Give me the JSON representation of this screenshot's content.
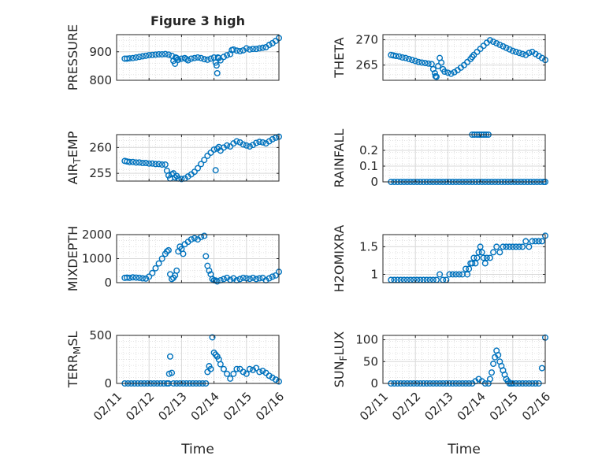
{
  "figure_title": "Figure 3 high",
  "colors": {
    "marker": "#0072bd",
    "axis": "#262626",
    "grid": "#d9d9d9"
  },
  "chart_data": [
    {
      "id": "pressure",
      "type": "scatter",
      "title": "Figure 3 high",
      "ylabel": "PRESSURE",
      "ylim": [
        800,
        960
      ],
      "yticks": [
        800,
        900
      ],
      "xlim": [
        0,
        5
      ],
      "xticks": [],
      "grid": true,
      "marker": "circle",
      "x": [
        0.25,
        0.32,
        0.4,
        0.5,
        0.6,
        0.7,
        0.8,
        0.9,
        1.0,
        1.1,
        1.2,
        1.3,
        1.4,
        1.5,
        1.6,
        1.7,
        1.75,
        1.8,
        1.82,
        1.85,
        1.88,
        1.9,
        2.0,
        2.1,
        2.15,
        2.2,
        2.3,
        2.4,
        2.5,
        2.6,
        2.7,
        2.8,
        2.9,
        3.0,
        3.05,
        3.08,
        3.1,
        3.12,
        3.15,
        3.2,
        3.3,
        3.4,
        3.5,
        3.55,
        3.6,
        3.7,
        3.8,
        3.9,
        4.0,
        4.1,
        4.2,
        4.3,
        4.4,
        4.5,
        4.6,
        4.7,
        4.8,
        4.9,
        5.0
      ],
      "y": [
        876,
        876,
        877,
        878,
        880,
        882,
        884,
        886,
        888,
        889,
        890,
        891,
        891,
        892,
        890,
        886,
        868,
        858,
        880,
        878,
        872,
        872,
        876,
        878,
        874,
        870,
        876,
        878,
        880,
        878,
        874,
        872,
        876,
        880,
        862,
        852,
        825,
        880,
        878,
        870,
        882,
        888,
        892,
        906,
        908,
        904,
        902,
        905,
        912,
        908,
        910,
        910,
        912,
        914,
        916,
        924,
        930,
        938,
        948
      ]
    },
    {
      "id": "theta",
      "type": "scatter",
      "ylabel": "THETA",
      "ylim": [
        262,
        271
      ],
      "yticks": [
        265,
        270
      ],
      "xlim": [
        0,
        5
      ],
      "xticks": [],
      "grid": true,
      "marker": "circle",
      "x": [
        0.25,
        0.32,
        0.4,
        0.5,
        0.6,
        0.7,
        0.8,
        0.9,
        1.0,
        1.1,
        1.2,
        1.3,
        1.4,
        1.5,
        1.55,
        1.6,
        1.62,
        1.65,
        1.7,
        1.75,
        1.8,
        1.85,
        1.9,
        2.0,
        2.1,
        2.2,
        2.3,
        2.4,
        2.5,
        2.6,
        2.7,
        2.75,
        2.8,
        2.9,
        3.0,
        3.1,
        3.2,
        3.3,
        3.4,
        3.5,
        3.6,
        3.7,
        3.8,
        3.9,
        4.0,
        4.1,
        4.2,
        4.3,
        4.4,
        4.5,
        4.6,
        4.7,
        4.8,
        4.9,
        5.0
      ],
      "y": [
        267.0,
        266.9,
        266.8,
        266.7,
        266.5,
        266.4,
        266.2,
        266.0,
        265.8,
        265.6,
        265.5,
        265.4,
        265.3,
        265.2,
        264.2,
        263.4,
        262.8,
        262.7,
        264.8,
        266.4,
        265.5,
        264.2,
        263.7,
        263.5,
        263.3,
        263.6,
        264.0,
        264.5,
        265.0,
        265.6,
        266.2,
        266.6,
        267.0,
        267.6,
        268.2,
        268.8,
        269.4,
        269.9,
        269.6,
        269.3,
        269.0,
        268.7,
        268.4,
        268.1,
        267.8,
        267.6,
        267.4,
        267.2,
        267.0,
        267.4,
        267.6,
        267.2,
        266.8,
        266.4,
        266.0
      ]
    },
    {
      "id": "air_temp",
      "type": "scatter",
      "ylabel": "AIR_TEMP",
      "ylim": [
        253.5,
        262.5
      ],
      "yticks": [
        255,
        260
      ],
      "xlim": [
        0,
        5
      ],
      "xticks": [],
      "grid": true,
      "marker": "circle",
      "x": [
        0.25,
        0.32,
        0.4,
        0.5,
        0.6,
        0.7,
        0.8,
        0.9,
        1.0,
        1.1,
        1.2,
        1.3,
        1.4,
        1.5,
        1.55,
        1.6,
        1.65,
        1.7,
        1.75,
        1.8,
        1.85,
        1.9,
        2.0,
        2.1,
        2.2,
        2.3,
        2.4,
        2.5,
        2.6,
        2.7,
        2.8,
        2.9,
        3.0,
        3.05,
        3.1,
        3.15,
        3.2,
        3.3,
        3.4,
        3.5,
        3.6,
        3.7,
        3.8,
        3.9,
        4.0,
        4.1,
        4.2,
        4.3,
        4.4,
        4.5,
        4.6,
        4.7,
        4.8,
        4.9,
        5.0
      ],
      "y": [
        257.4,
        257.3,
        257.2,
        257.2,
        257.1,
        257.1,
        257.0,
        257.0,
        256.9,
        256.9,
        256.8,
        256.8,
        256.7,
        256.7,
        255.5,
        254.6,
        254.0,
        254.8,
        255.0,
        254.2,
        254.5,
        254.0,
        253.9,
        254.0,
        254.4,
        254.8,
        255.3,
        256.0,
        256.8,
        257.6,
        258.4,
        259.0,
        259.6,
        255.6,
        259.8,
        260.1,
        259.4,
        260.0,
        260.4,
        260.2,
        260.8,
        261.2,
        261.0,
        260.6,
        260.4,
        260.2,
        260.5,
        260.9,
        261.1,
        261.0,
        260.8,
        261.2,
        261.6,
        261.9,
        262.1
      ]
    },
    {
      "id": "rainfall",
      "type": "scatter",
      "ylabel": "RAINFALL",
      "ylim": [
        0,
        0.3
      ],
      "yticks": [
        0,
        0.1,
        0.2
      ],
      "xlim": [
        0,
        5
      ],
      "xticks": [],
      "grid": true,
      "marker": "circle",
      "x": [
        0.25,
        0.35,
        0.45,
        0.55,
        0.65,
        0.75,
        0.85,
        0.95,
        1.05,
        1.15,
        1.25,
        1.35,
        1.45,
        1.55,
        1.65,
        1.75,
        1.85,
        1.95,
        2.05,
        2.15,
        2.25,
        2.35,
        2.45,
        2.55,
        2.65,
        2.75,
        2.85,
        2.95,
        3.05,
        3.15,
        3.25,
        3.35,
        3.45,
        3.55,
        3.65,
        3.75,
        3.85,
        3.95,
        4.05,
        4.15,
        4.25,
        4.35,
        4.45,
        4.55,
        4.65,
        4.75,
        4.85,
        4.95,
        5.0,
        2.75,
        2.82,
        2.9,
        2.97,
        3.04,
        3.11,
        3.18,
        3.25
      ],
      "y": [
        0,
        0,
        0,
        0,
        0,
        0,
        0,
        0,
        0,
        0,
        0,
        0,
        0,
        0,
        0,
        0,
        0,
        0,
        0,
        0,
        0,
        0,
        0,
        0,
        0,
        0,
        0,
        0,
        0,
        0,
        0,
        0,
        0,
        0,
        0,
        0,
        0,
        0,
        0,
        0,
        0,
        0,
        0,
        0,
        0,
        0,
        0,
        0,
        0,
        0.3,
        0.3,
        0.3,
        0.3,
        0.3,
        0.3,
        0.3,
        0.3
      ]
    },
    {
      "id": "mixdepth",
      "type": "scatter",
      "ylabel": "MIXDEPTH",
      "ylim": [
        0,
        2000
      ],
      "yticks": [
        0,
        1000,
        2000
      ],
      "xlim": [
        0,
        5
      ],
      "xticks": [],
      "grid": true,
      "marker": "circle",
      "x": [
        0.25,
        0.32,
        0.4,
        0.5,
        0.6,
        0.7,
        0.8,
        0.9,
        1.0,
        1.1,
        1.2,
        1.3,
        1.4,
        1.5,
        1.55,
        1.6,
        1.65,
        1.7,
        1.75,
        1.8,
        1.85,
        1.9,
        1.95,
        2.0,
        2.05,
        2.1,
        2.2,
        2.3,
        2.4,
        2.5,
        2.6,
        2.7,
        2.75,
        2.8,
        2.85,
        2.9,
        2.95,
        3.0,
        3.05,
        3.1,
        3.2,
        3.3,
        3.4,
        3.5,
        3.6,
        3.7,
        3.8,
        3.9,
        4.0,
        4.1,
        4.2,
        4.3,
        4.4,
        4.5,
        4.6,
        4.7,
        4.8,
        4.9,
        5.0
      ],
      "y": [
        200,
        210,
        200,
        220,
        210,
        200,
        180,
        170,
        250,
        400,
        600,
        800,
        1000,
        1200,
        1300,
        1350,
        350,
        150,
        200,
        300,
        500,
        1300,
        1500,
        1400,
        1200,
        1600,
        1700,
        1800,
        1850,
        1800,
        1900,
        1950,
        1100,
        700,
        500,
        350,
        150,
        100,
        90,
        50,
        100,
        150,
        200,
        120,
        180,
        100,
        150,
        200,
        180,
        160,
        200,
        150,
        180,
        200,
        100,
        180,
        250,
        300,
        450
      ]
    },
    {
      "id": "h2omixra",
      "type": "scatter",
      "ylabel": "H2OMIXRA",
      "ylim": [
        0.85,
        1.72
      ],
      "yticks": [
        1,
        1.5
      ],
      "xlim": [
        0,
        5
      ],
      "xticks": [],
      "grid": true,
      "marker": "circle",
      "x": [
        0.25,
        0.35,
        0.45,
        0.55,
        0.65,
        0.75,
        0.85,
        0.95,
        1.05,
        1.15,
        1.25,
        1.35,
        1.45,
        1.55,
        1.65,
        1.75,
        1.85,
        1.95,
        2.05,
        2.15,
        2.25,
        2.35,
        2.45,
        2.55,
        2.6,
        2.65,
        2.7,
        2.75,
        2.8,
        2.85,
        2.9,
        2.95,
        3.0,
        3.05,
        3.1,
        3.15,
        3.2,
        3.3,
        3.4,
        3.5,
        3.6,
        3.7,
        3.8,
        3.9,
        4.0,
        4.1,
        4.2,
        4.3,
        4.4,
        4.5,
        4.6,
        4.7,
        4.8,
        4.9,
        5.0
      ],
      "y": [
        0.9,
        0.9,
        0.9,
        0.9,
        0.9,
        0.9,
        0.9,
        0.9,
        0.9,
        0.9,
        0.9,
        0.9,
        0.9,
        0.9,
        0.9,
        1.0,
        0.9,
        0.9,
        1.0,
        1.0,
        1.0,
        1.0,
        1.0,
        1.1,
        1.0,
        1.1,
        1.2,
        1.2,
        1.3,
        1.2,
        1.3,
        1.4,
        1.5,
        1.4,
        1.3,
        1.2,
        1.3,
        1.3,
        1.4,
        1.5,
        1.4,
        1.5,
        1.5,
        1.5,
        1.5,
        1.5,
        1.5,
        1.5,
        1.6,
        1.5,
        1.6,
        1.6,
        1.6,
        1.6,
        1.7
      ]
    },
    {
      "id": "terr_msl",
      "type": "scatter",
      "ylabel": "TERR_MSL",
      "ylim": [
        0,
        500
      ],
      "yticks": [
        0,
        500
      ],
      "xlim": [
        0,
        5
      ],
      "xticks": [
        "02/11",
        "02/12",
        "02/13",
        "02/14",
        "02/15",
        "02/16"
      ],
      "xlabel": "Time",
      "grid": true,
      "marker": "circle",
      "x": [
        0.25,
        0.35,
        0.45,
        0.55,
        0.65,
        0.75,
        0.85,
        0.95,
        1.05,
        1.15,
        1.25,
        1.35,
        1.45,
        1.55,
        1.6,
        1.62,
        1.65,
        1.7,
        1.75,
        1.85,
        1.95,
        2.05,
        2.15,
        2.25,
        2.35,
        2.45,
        2.55,
        2.65,
        2.75,
        2.8,
        2.85,
        2.9,
        2.95,
        3.0,
        3.05,
        3.1,
        3.15,
        3.2,
        3.3,
        3.4,
        3.5,
        3.6,
        3.7,
        3.8,
        3.9,
        4.0,
        4.1,
        4.2,
        4.3,
        4.4,
        4.5,
        4.6,
        4.7,
        4.8,
        4.9,
        5.0
      ],
      "y": [
        0,
        0,
        0,
        0,
        0,
        0,
        0,
        0,
        0,
        0,
        0,
        0,
        0,
        0,
        0,
        100,
        280,
        110,
        0,
        0,
        0,
        0,
        0,
        0,
        0,
        0,
        0,
        0,
        0,
        120,
        180,
        150,
        480,
        320,
        300,
        280,
        250,
        200,
        150,
        100,
        50,
        100,
        150,
        150,
        120,
        100,
        150,
        140,
        160,
        120,
        130,
        110,
        80,
        60,
        40,
        20
      ]
    },
    {
      "id": "sun_flux",
      "type": "scatter",
      "ylabel": "SUN_FLUX",
      "ylim": [
        0,
        110
      ],
      "yticks": [
        0,
        50,
        100
      ],
      "xlim": [
        0,
        5
      ],
      "xticks": [
        "02/11",
        "02/12",
        "02/13",
        "02/14",
        "02/15",
        "02/16"
      ],
      "xlabel": "Time",
      "grid": true,
      "marker": "circle",
      "x": [
        0.25,
        0.35,
        0.45,
        0.55,
        0.65,
        0.75,
        0.85,
        0.95,
        1.05,
        1.15,
        1.25,
        1.35,
        1.45,
        1.55,
        1.65,
        1.75,
        1.85,
        1.95,
        2.05,
        2.15,
        2.25,
        2.35,
        2.45,
        2.55,
        2.65,
        2.75,
        2.85,
        2.95,
        3.05,
        3.15,
        3.25,
        3.3,
        3.35,
        3.4,
        3.45,
        3.5,
        3.55,
        3.6,
        3.65,
        3.7,
        3.75,
        3.8,
        3.85,
        3.9,
        3.95,
        4.0,
        4.1,
        4.2,
        4.3,
        4.4,
        4.5,
        4.6,
        4.7,
        4.8,
        4.9,
        5.0
      ],
      "y": [
        0,
        0,
        0,
        0,
        0,
        0,
        0,
        0,
        0,
        0,
        0,
        0,
        0,
        0,
        0,
        0,
        0,
        0,
        0,
        0,
        0,
        0,
        0,
        0,
        0,
        0,
        5,
        10,
        5,
        0,
        0,
        10,
        25,
        45,
        60,
        75,
        65,
        50,
        40,
        30,
        20,
        10,
        5,
        0,
        0,
        0,
        0,
        0,
        0,
        0,
        0,
        0,
        0,
        0,
        35,
        105
      ]
    }
  ]
}
